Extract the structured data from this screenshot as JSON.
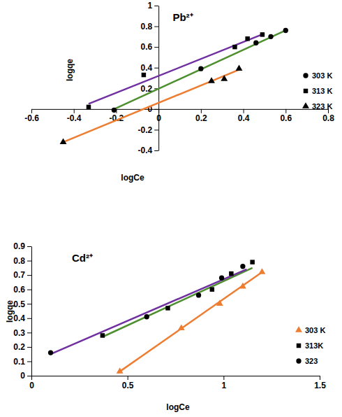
{
  "chart_data": [
    {
      "type": "scatter",
      "title": "Pb²⁺",
      "x_label": "logCe",
      "y_label": "logqe",
      "xlim": [
        -0.6,
        0.8
      ],
      "xticks": [
        -0.6,
        -0.4,
        -0.2,
        0,
        0.2,
        0.4,
        0.6,
        0.8
      ],
      "ylim": [
        -0.4,
        1
      ],
      "yticks": [
        -0.4,
        -0.2,
        0,
        0.2,
        0.4,
        0.6,
        0.8,
        1
      ],
      "grid": false,
      "legend": "right",
      "series": [
        {
          "name": "303 K",
          "type": "scatter",
          "marker": "circle",
          "color": "#000000",
          "x": [
            -0.21,
            0.2,
            0.46,
            0.53,
            0.6
          ],
          "values": [
            -0.01,
            0.39,
            0.64,
            0.7,
            0.76
          ]
        },
        {
          "name": "313 K",
          "type": "scatter",
          "marker": "square",
          "color": "#000000",
          "x": [
            -0.33,
            -0.07,
            0.36,
            0.42,
            0.49
          ],
          "values": [
            0.02,
            0.33,
            0.6,
            0.68,
            0.72
          ]
        },
        {
          "name": "323 K",
          "type": "scatter",
          "marker": "triangle",
          "color": "#000000",
          "x": [
            -0.45,
            0.25,
            0.31,
            0.38
          ],
          "values": [
            -0.32,
            0.27,
            0.29,
            0.39
          ]
        },
        {
          "type": "line",
          "line_style": "solid",
          "color": "#4e8f2f",
          "x": [
            -0.22,
            0.6
          ],
          "values": [
            -0.01,
            0.76
          ]
        },
        {
          "type": "line",
          "line_style": "solid",
          "color": "#7030a0",
          "x": [
            -0.33,
            0.5
          ],
          "values": [
            0.05,
            0.73
          ]
        },
        {
          "type": "line",
          "line_style": "solid",
          "color": "#ed7d31",
          "x": [
            -0.45,
            0.38
          ],
          "values": [
            -0.32,
            0.38
          ]
        }
      ]
    },
    {
      "type": "scatter",
      "title": "Cd²⁺",
      "x_label": "logCe",
      "y_label": "logqe",
      "xlim": [
        0,
        1.5
      ],
      "xticks": [
        0,
        0.5,
        1,
        1.5
      ],
      "ylim": [
        0,
        0.9
      ],
      "yticks": [
        0,
        0.1,
        0.2,
        0.3,
        0.4,
        0.5,
        0.6,
        0.7,
        0.8,
        0.9
      ],
      "grid": false,
      "legend": "right",
      "series": [
        {
          "name": "303 K",
          "type": "scatter",
          "marker": "triangle",
          "color": "#ed7d31",
          "x": [
            0.46,
            0.78,
            0.98,
            1.1,
            1.2
          ],
          "values": [
            0.03,
            0.33,
            0.5,
            0.62,
            0.72
          ]
        },
        {
          "name": "313K",
          "type": "scatter",
          "marker": "square",
          "color": "#000000",
          "x": [
            0.37,
            0.71,
            0.94,
            1.04,
            1.15
          ],
          "values": [
            0.28,
            0.47,
            0.6,
            0.71,
            0.79
          ]
        },
        {
          "name": "323",
          "type": "scatter",
          "marker": "circle",
          "color": "#000000",
          "x": [
            0.1,
            0.6,
            0.87,
            0.99,
            1.1
          ],
          "values": [
            0.16,
            0.41,
            0.56,
            0.68,
            0.76
          ]
        },
        {
          "type": "line",
          "line_style": "solid",
          "color": "#ed7d31",
          "x": [
            0.45,
            1.2
          ],
          "values": [
            0.02,
            0.72
          ]
        },
        {
          "type": "line",
          "line_style": "solid",
          "color": "#4e8f2f",
          "x": [
            0.37,
            1.15
          ],
          "values": [
            0.27,
            0.75
          ]
        },
        {
          "type": "line",
          "line_style": "solid",
          "color": "#7030a0",
          "x": [
            0.1,
            1.12
          ],
          "values": [
            0.15,
            0.74
          ]
        }
      ]
    }
  ]
}
